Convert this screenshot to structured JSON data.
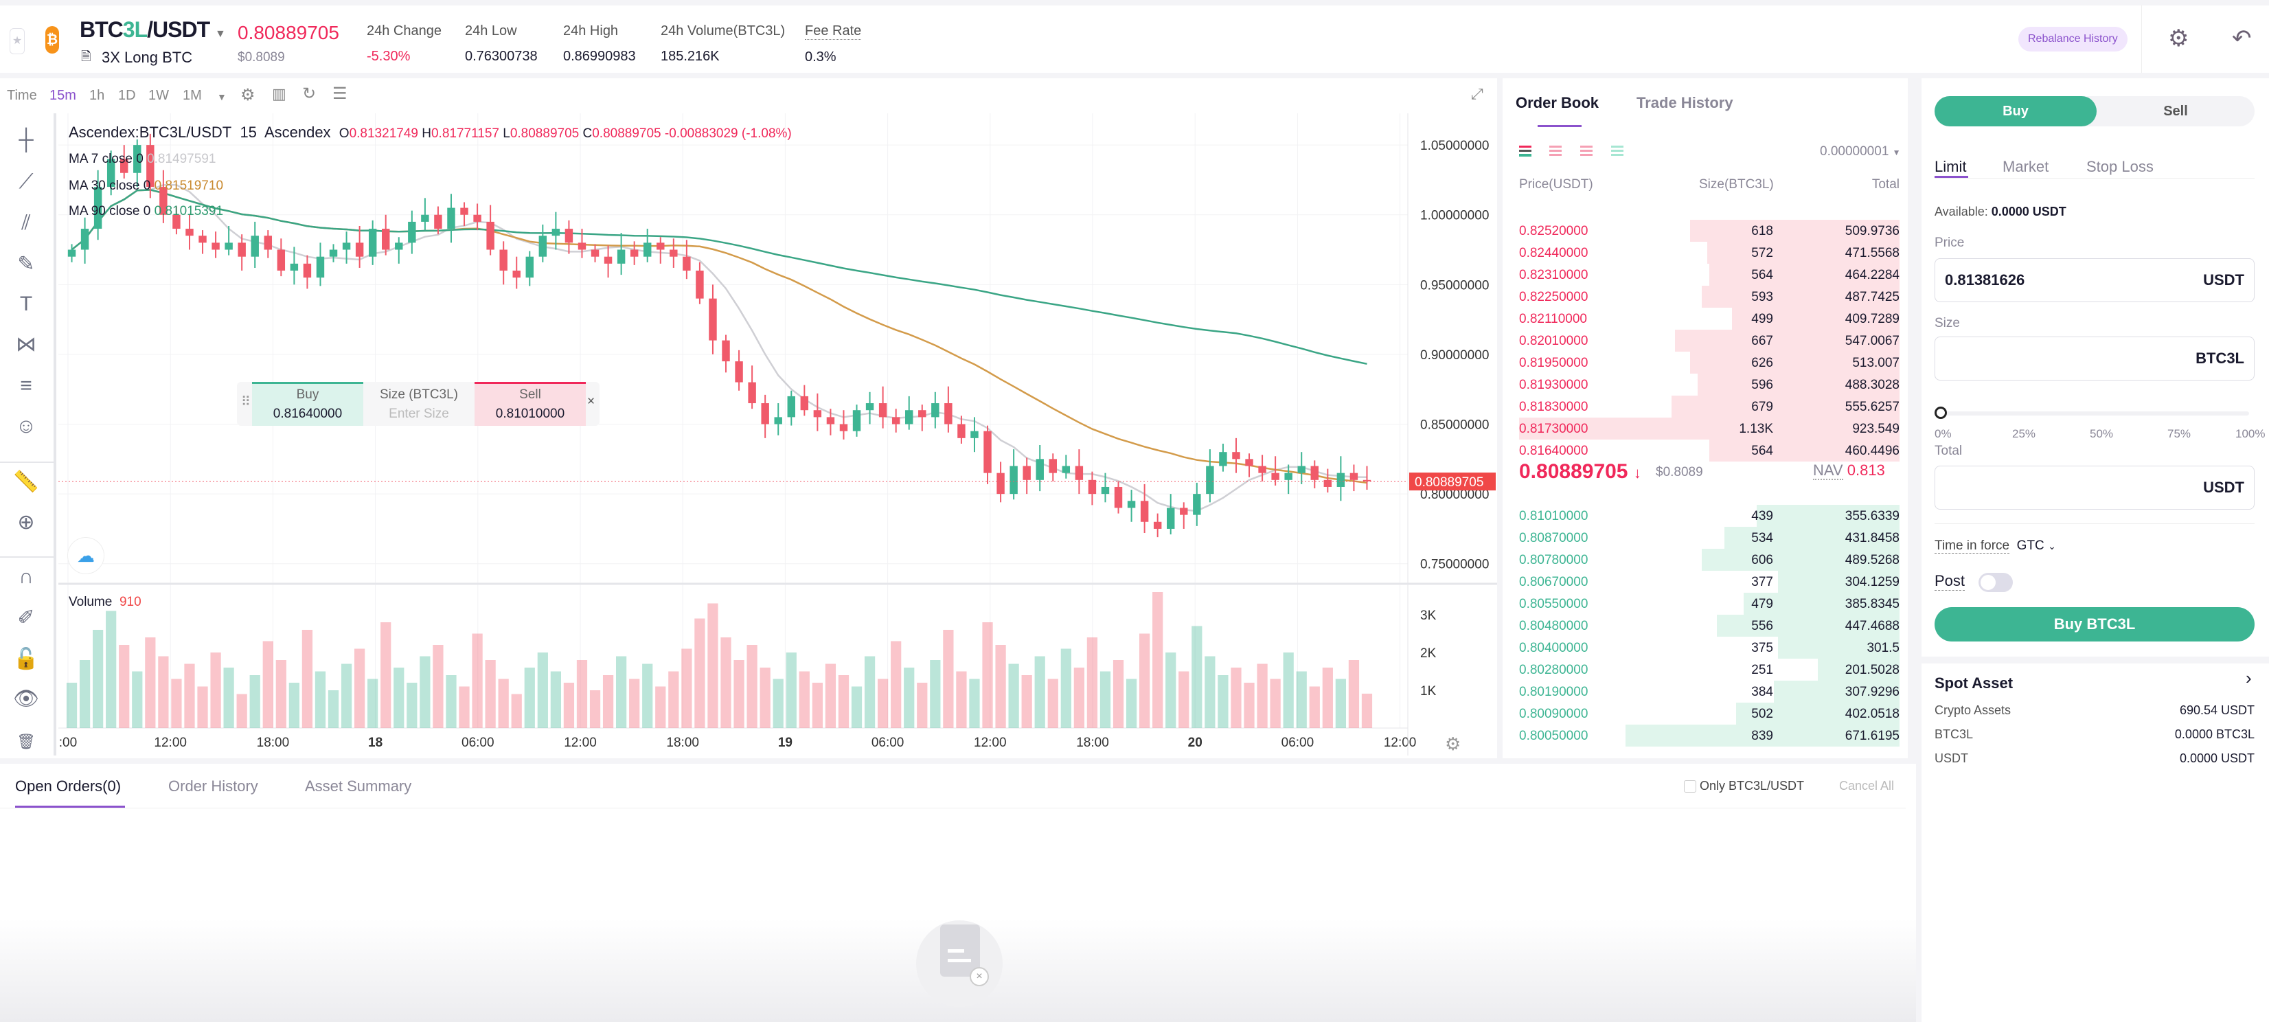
{
  "header": {
    "pair_base": "BTC",
    "pair_mid": "3L",
    "pair_quote": "/USDT",
    "subtitle": "3X Long BTC",
    "price": "0.80889705",
    "price_usd": "$0.8089",
    "stats": [
      {
        "label": "24h Change",
        "value": "-5.30%"
      },
      {
        "label": "24h Low",
        "value": "0.76300738"
      },
      {
        "label": "24h High",
        "value": "0.86990983"
      },
      {
        "label": "24h Volume(BTC3L)",
        "value": "185.216K"
      },
      {
        "label": "Fee Rate",
        "value": "0.3%"
      }
    ],
    "rebalance": "Rebalance History"
  },
  "toolbar": {
    "time": "Time",
    "intervals": [
      "15m",
      "1h",
      "1D",
      "1W",
      "1M"
    ]
  },
  "legend": {
    "symbol": "Ascendex:BTC3L/USDT",
    "interval": "15",
    "exchange": "Ascendex",
    "o_label": "O",
    "o": "0.81321749",
    "h_label": "H",
    "h": "0.81771157",
    "l_label": "L",
    "l": "0.80889705",
    "c_label": "C",
    "c": "0.80889705",
    "change": "-0.00883029 (-1.08%)",
    "ma": [
      {
        "label": "MA 7 close 0",
        "value": "0.81497591"
      },
      {
        "label": "MA 30 close 0",
        "value": "0.81519710"
      },
      {
        "label": "MA 90 close 0",
        "value": "0.81015391"
      }
    ],
    "volume_label": "Volume",
    "volume_value": "910"
  },
  "quick_trade": {
    "buy": "Buy",
    "buy_price": "0.81640000",
    "size_label": "Size (BTC3L)",
    "size_placeholder": "Enter Size",
    "sell": "Sell",
    "sell_price": "0.81010000",
    "close": "×"
  },
  "chart_data": {
    "type": "candlestick",
    "title": "Ascendex:BTC3L/USDT 15",
    "ylim": [
      0.7356,
      1.0727
    ],
    "price_ticks": [
      "1.05000000",
      "1.00000000",
      "0.95000000",
      "0.90000000",
      "0.85000000",
      "0.80000000",
      "0.75000000"
    ],
    "volume_ticks": [
      "3K",
      "2K",
      "1K"
    ],
    "time_labels": [
      ":00",
      "12:00",
      "18:00",
      "18",
      "06:00",
      "12:00",
      "18:00",
      "19",
      "06:00",
      "12:00",
      "18:00",
      "20",
      "06:00",
      "12:00"
    ],
    "last_price": 0.80889705,
    "last_price_label": "0.80889705",
    "open0": 0.97,
    "closes": [
      0.975,
      0.99,
      1.02,
      1.04,
      1.03,
      1.05,
      1.02,
      1.0,
      0.99,
      0.985,
      0.98,
      0.975,
      0.98,
      0.97,
      0.985,
      0.975,
      0.96,
      0.965,
      0.955,
      0.97,
      0.975,
      0.98,
      0.97,
      0.99,
      0.975,
      0.98,
      0.995,
      1.0,
      0.99,
      1.005,
      1.0,
      0.995,
      0.975,
      0.96,
      0.955,
      0.97,
      0.985,
      0.99,
      0.98,
      0.975,
      0.97,
      0.965,
      0.975,
      0.97,
      0.98,
      0.975,
      0.97,
      0.96,
      0.94,
      0.91,
      0.895,
      0.88,
      0.865,
      0.85,
      0.855,
      0.87,
      0.86,
      0.855,
      0.85,
      0.845,
      0.86,
      0.865,
      0.855,
      0.85,
      0.86,
      0.855,
      0.865,
      0.85,
      0.84,
      0.845,
      0.815,
      0.8,
      0.82,
      0.81,
      0.825,
      0.815,
      0.82,
      0.81,
      0.8,
      0.805,
      0.79,
      0.795,
      0.78,
      0.775,
      0.79,
      0.785,
      0.8,
      0.82,
      0.83,
      0.825,
      0.82,
      0.815,
      0.81,
      0.815,
      0.82,
      0.81,
      0.805,
      0.815,
      0.81,
      0.809
    ],
    "volumes": [
      1200,
      1800,
      2600,
      3100,
      2200,
      1500,
      2400,
      1900,
      1300,
      1700,
      1100,
      2000,
      1600,
      900,
      1400,
      2300,
      1800,
      1200,
      2600,
      1500,
      1000,
      1700,
      2100,
      1300,
      2800,
      1600,
      1200,
      1900,
      2200,
      1400,
      1100,
      2500,
      1800,
      1300,
      900,
      1600,
      2000,
      1500,
      1200,
      1800,
      1000,
      1400,
      1900,
      1300,
      1700,
      1100,
      1500,
      2100,
      2900,
      3300,
      2400,
      1800,
      2200,
      1600,
      1300,
      2000,
      1500,
      1200,
      1700,
      1400,
      1100,
      1900,
      1300,
      2300,
      1600,
      1200,
      1800,
      2600,
      1500,
      1300,
      2800,
      2200,
      1700,
      1400,
      1900,
      1300,
      2100,
      1600,
      2400,
      1500,
      1800,
      1300,
      2500,
      3600,
      2000,
      1500,
      2700,
      1900,
      1400,
      1600,
      1200,
      1700,
      1300,
      2000,
      1500,
      1100,
      1600,
      1300,
      1800,
      910
    ],
    "ma_periods": [
      7,
      30,
      90
    ],
    "colors": {
      "up": "#3db593",
      "down": "#f05a6a",
      "ma7": "#cfcfd4",
      "ma30": "#d39b4a",
      "ma90": "#3aa585"
    }
  },
  "orderbook": {
    "tabs": [
      "Order Book",
      "Trade History"
    ],
    "precision": "0.00000001",
    "headers": [
      "Price(USDT)",
      "Size(BTC3L)",
      "Total"
    ],
    "asks": [
      {
        "price": "0.82520000",
        "size": "618",
        "total": "509.9736",
        "depth": 0.55
      },
      {
        "price": "0.82440000",
        "size": "572",
        "total": "471.5568",
        "depth": 0.505
      },
      {
        "price": "0.82310000",
        "size": "564",
        "total": "464.2284",
        "depth": 0.5
      },
      {
        "price": "0.82250000",
        "size": "593",
        "total": "487.7425",
        "depth": 0.52
      },
      {
        "price": "0.82110000",
        "size": "499",
        "total": "409.7289",
        "depth": 0.44
      },
      {
        "price": "0.82010000",
        "size": "667",
        "total": "547.0067",
        "depth": 0.59
      },
      {
        "price": "0.81950000",
        "size": "626",
        "total": "513.007",
        "depth": 0.55
      },
      {
        "price": "0.81930000",
        "size": "596",
        "total": "488.3028",
        "depth": 0.53
      },
      {
        "price": "0.81830000",
        "size": "679",
        "total": "555.6257",
        "depth": 0.6
      },
      {
        "price": "0.81730000",
        "size": "1.13K",
        "total": "923.549",
        "depth": 1.0
      },
      {
        "price": "0.81640000",
        "size": "564",
        "total": "460.4496",
        "depth": 0.5
      }
    ],
    "mid_price": "0.80889705",
    "mid_arrow": "↓",
    "mid_usd": "$0.8089",
    "nav_label": "NAV",
    "nav": "0.813",
    "bids": [
      {
        "price": "0.81010000",
        "size": "439",
        "total": "355.6339",
        "depth": 0.376
      },
      {
        "price": "0.80870000",
        "size": "534",
        "total": "431.8458",
        "depth": 0.46
      },
      {
        "price": "0.80780000",
        "size": "606",
        "total": "489.5268",
        "depth": 0.52
      },
      {
        "price": "0.80670000",
        "size": "377",
        "total": "304.1259",
        "depth": 0.32
      },
      {
        "price": "0.80550000",
        "size": "479",
        "total": "385.8345",
        "depth": 0.41
      },
      {
        "price": "0.80480000",
        "size": "556",
        "total": "447.4688",
        "depth": 0.48
      },
      {
        "price": "0.80400000",
        "size": "375",
        "total": "301.5",
        "depth": 0.32
      },
      {
        "price": "0.80280000",
        "size": "251",
        "total": "201.5028",
        "depth": 0.215
      },
      {
        "price": "0.80190000",
        "size": "384",
        "total": "307.9296",
        "depth": 0.33
      },
      {
        "price": "0.80090000",
        "size": "502",
        "total": "402.0518",
        "depth": 0.43
      },
      {
        "price": "0.80050000",
        "size": "839",
        "total": "671.6195",
        "depth": 0.72
      }
    ]
  },
  "order_form": {
    "buy": "Buy",
    "sell": "Sell",
    "types": [
      "Limit",
      "Market",
      "Stop Loss"
    ],
    "available_label": "Available:",
    "available": "0.0000 USDT",
    "price_label": "Price",
    "price_value": "0.81381626",
    "price_unit": "USDT",
    "size_label": "Size",
    "size_unit": "BTC3L",
    "slider_value": 0,
    "slider_marks": [
      "0%",
      "25%",
      "50%",
      "75%",
      "100%"
    ],
    "total_label": "Total",
    "total_unit": "USDT",
    "tif_label": "Time in force",
    "tif_value": "GTC",
    "post_label": "Post",
    "submit": "Buy BTC3L"
  },
  "spot_asset": {
    "title": "Spot Asset",
    "rows": [
      {
        "label": "Crypto Assets",
        "value": "690.54 USDT"
      },
      {
        "label": "BTC3L",
        "value": "0.0000 BTC3L"
      },
      {
        "label": "USDT",
        "value": "0.0000 USDT"
      }
    ]
  },
  "orders": {
    "tabs": [
      "Open Orders(0)",
      "Order History",
      "Asset Summary"
    ],
    "only_label": "Only BTC3L/USDT",
    "cancel_all": "Cancel All"
  }
}
